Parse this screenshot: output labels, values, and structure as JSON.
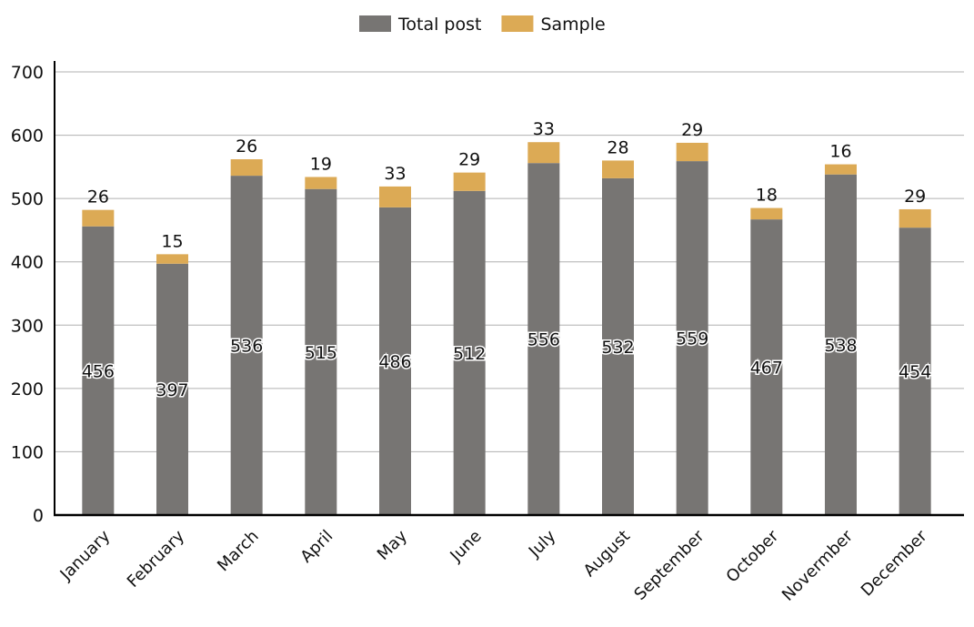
{
  "chart_data": {
    "type": "bar",
    "stacked": true,
    "categories": [
      "January",
      "February",
      "March",
      "April",
      "May",
      "June",
      "July",
      "August",
      "September",
      "October",
      "Novermber",
      "December"
    ],
    "series": [
      {
        "name": "Total post",
        "color": "#777573",
        "values": [
          456,
          397,
          536,
          515,
          486,
          512,
          556,
          532,
          559,
          467,
          538,
          454
        ]
      },
      {
        "name": "Sample",
        "color": "#dcaa55",
        "values": [
          26,
          15,
          26,
          19,
          33,
          29,
          33,
          28,
          29,
          18,
          16,
          29
        ]
      }
    ],
    "ylim": [
      0,
      700
    ],
    "yticks": [
      0,
      100,
      200,
      300,
      400,
      500,
      600,
      700
    ],
    "grid": true,
    "legend": "top-center"
  }
}
